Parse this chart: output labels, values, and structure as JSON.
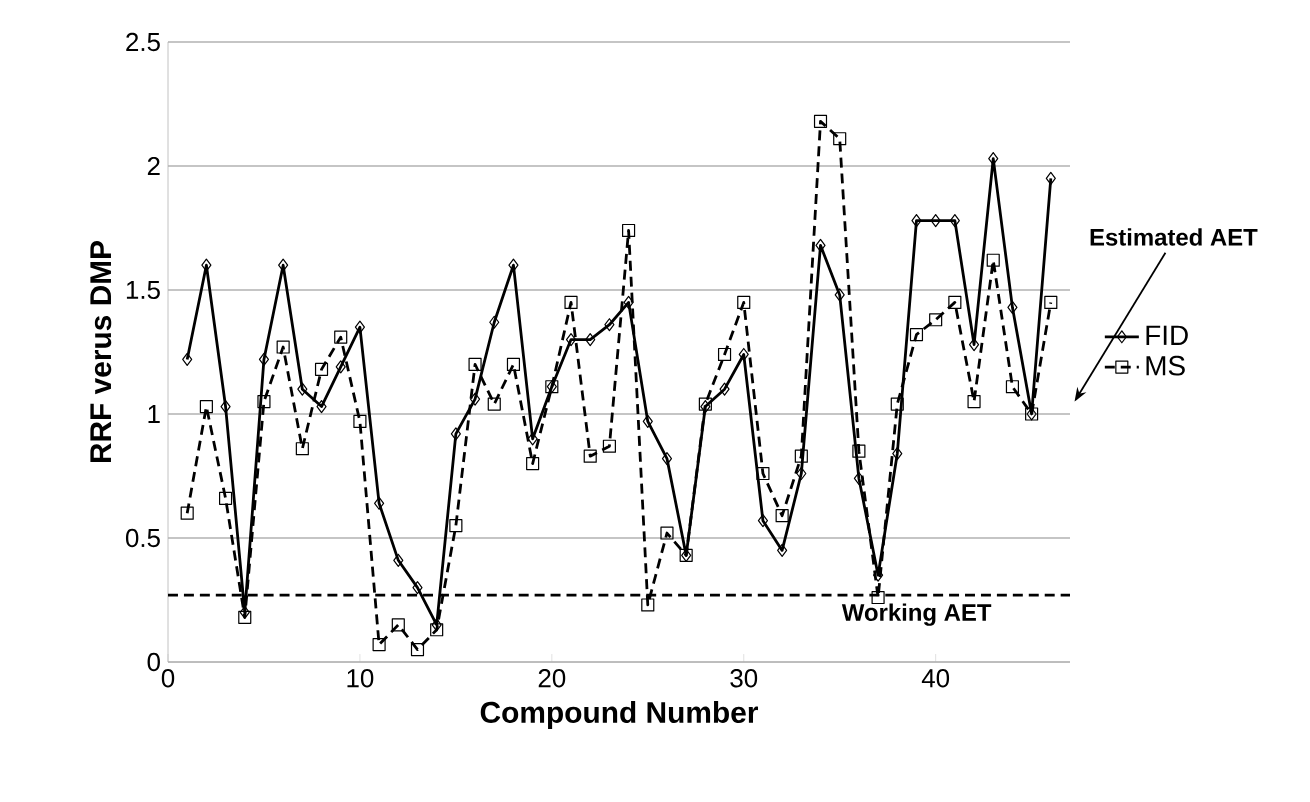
{
  "chart_data": {
    "type": "line",
    "xlabel": "Compound Number",
    "ylabel": "RRF verus DMP",
    "x": [
      1,
      2,
      3,
      4,
      5,
      6,
      7,
      8,
      9,
      10,
      11,
      12,
      13,
      14,
      15,
      16,
      17,
      18,
      19,
      20,
      21,
      22,
      23,
      24,
      25,
      26,
      27,
      28,
      29,
      30,
      31,
      32,
      33,
      34,
      35,
      36,
      37,
      38,
      39,
      40,
      41,
      42,
      43,
      44,
      45,
      46
    ],
    "series": [
      {
        "name": "FID",
        "color": "#000000",
        "marker": "diamond",
        "line_style": "solid",
        "values": [
          1.22,
          1.6,
          1.03,
          0.2,
          1.22,
          1.6,
          1.1,
          1.03,
          1.19,
          1.35,
          0.64,
          0.41,
          0.3,
          0.15,
          0.92,
          1.06,
          1.37,
          1.6,
          0.9,
          1.11,
          1.3,
          1.3,
          1.36,
          1.45,
          0.97,
          0.82,
          0.43,
          1.03,
          1.1,
          1.24,
          0.57,
          0.45,
          0.76,
          1.68,
          1.48,
          0.74,
          0.35,
          0.84,
          1.78,
          1.78,
          1.78,
          1.28,
          2.03,
          1.43,
          1.0,
          1.95
        ]
      },
      {
        "name": "MS",
        "color": "#000000",
        "marker": "square",
        "line_style": "dashed",
        "values": [
          0.6,
          1.03,
          0.66,
          0.18,
          1.05,
          1.27,
          0.86,
          1.18,
          1.31,
          0.97,
          0.07,
          0.15,
          0.05,
          0.13,
          0.55,
          1.2,
          1.04,
          1.2,
          0.8,
          1.11,
          1.45,
          0.83,
          0.87,
          1.74,
          0.23,
          0.52,
          0.43,
          1.04,
          1.24,
          1.45,
          0.76,
          0.59,
          0.83,
          2.18,
          2.11,
          0.85,
          0.26,
          1.04,
          1.32,
          1.38,
          1.45,
          1.05,
          1.62,
          1.11,
          1.0,
          1.45
        ]
      }
    ],
    "xlim": [
      0,
      47
    ],
    "xticks": [
      0,
      10,
      20,
      30,
      40
    ],
    "ylim": [
      0,
      2.5
    ],
    "yticks": [
      0,
      0.5,
      1,
      1.5,
      2,
      2.5
    ],
    "grid": "y",
    "legend": "right",
    "ref_lines": [
      {
        "axis": "y",
        "value": 0.27,
        "label": "Working AET",
        "line_style": "dashed",
        "color": "#000000"
      }
    ],
    "annotations": [
      "Estimated AET"
    ]
  }
}
